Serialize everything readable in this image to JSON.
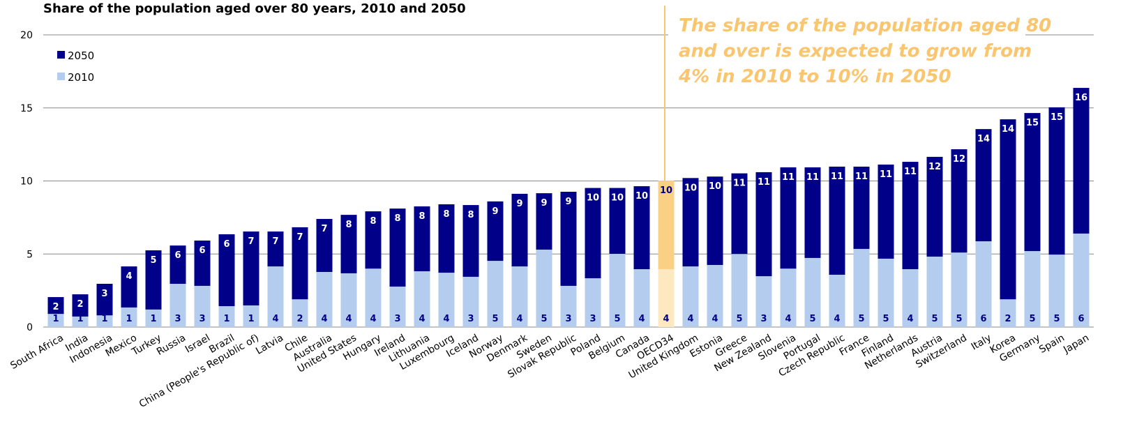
{
  "chart_data": {
    "type": "overlap-bar",
    "title": "Share of the population aged over 80 years, 2010 and 2050",
    "annotation": [
      "The share of the population aged 80",
      "and over is expected to grow from",
      "4% in 2010 to 10% in 2050"
    ],
    "annotation_color": "#f9c56f",
    "highlight_category": "OECD34",
    "highlight_colors": [
      "#f9d084",
      "#fde8bf"
    ],
    "categories": [
      "South Africa",
      "India",
      "Indonesia",
      "Mexico",
      "Turkey",
      "Russia",
      "Israel",
      "Brazil",
      "China (People's Republic of)",
      "Latvia",
      "Chile",
      "Australia",
      "United States",
      "Hungary",
      "Ireland",
      "Lithuania",
      "Luxembourg",
      "Iceland",
      "Norway",
      "Denmark",
      "Sweden",
      "Slovak Republic",
      "Poland",
      "Belgium",
      "Canada",
      "OECD34",
      "United Kingdom",
      "Estonia",
      "Greece",
      "New Zealand",
      "Slovenia",
      "Portugal",
      "Czech Republic",
      "France",
      "Finland",
      "Netherlands",
      "Austria",
      "Switzerland",
      "Italy",
      "Korea",
      "Germany",
      "Spain",
      "Japan"
    ],
    "series": [
      {
        "name": "2050",
        "color": "#000088",
        "values": [
          2.05,
          2.24,
          2.96,
          4.15,
          5.25,
          5.58,
          5.92,
          6.35,
          6.54,
          6.54,
          6.83,
          7.4,
          7.68,
          7.92,
          8.11,
          8.26,
          8.4,
          8.35,
          8.6,
          9.12,
          9.16,
          9.26,
          9.52,
          9.52,
          9.64,
          10.02,
          10.2,
          10.3,
          10.52,
          10.6,
          10.93,
          10.93,
          10.98,
          10.98,
          11.12,
          11.31,
          11.65,
          12.17,
          13.55,
          14.22,
          14.65,
          15.04,
          16.37
        ],
        "value_labels": [
          "2",
          "2",
          "3",
          "4",
          "5",
          "6",
          "6",
          "6",
          "7",
          "7",
          "7",
          "7",
          "8",
          "8",
          "8",
          "8",
          "8",
          "8",
          "9",
          "9",
          "9",
          "9",
          "10",
          "10",
          "10",
          "10",
          "10",
          "10",
          "11",
          "11",
          "11",
          "11",
          "11",
          "11",
          "11",
          "11",
          "12",
          "12",
          "14",
          "14",
          "15",
          "15",
          "16"
        ]
      },
      {
        "name": "2010",
        "color": "#b4cdee",
        "values": [
          0.9,
          0.72,
          0.8,
          1.34,
          1.2,
          2.96,
          2.82,
          1.43,
          1.48,
          4.15,
          1.9,
          3.77,
          3.68,
          4.0,
          2.77,
          3.82,
          3.72,
          3.44,
          4.53,
          4.15,
          5.3,
          2.82,
          3.34,
          5.01,
          3.96,
          3.96,
          4.15,
          4.25,
          5.0,
          3.48,
          4.0,
          4.73,
          3.58,
          5.35,
          4.68,
          3.96,
          4.82,
          5.1,
          5.87,
          1.9,
          5.2,
          4.96,
          6.4
        ],
        "value_labels": [
          "1",
          "1",
          "1",
          "1",
          "1",
          "3",
          "3",
          "1",
          "1",
          "4",
          "2",
          "4",
          "4",
          "4",
          "3",
          "4",
          "4",
          "3",
          "5",
          "4",
          "5",
          "3",
          "3",
          "5",
          "4",
          "4",
          "4",
          "4",
          "5",
          "3",
          "4",
          "5",
          "4",
          "5",
          "5",
          "4",
          "5",
          "5",
          "6",
          "2",
          "5",
          "5",
          "6"
        ]
      }
    ],
    "ylim": [
      0,
      20
    ],
    "yticks": [
      0,
      5,
      10,
      15,
      20
    ],
    "grid": true,
    "legend": "top-left"
  }
}
